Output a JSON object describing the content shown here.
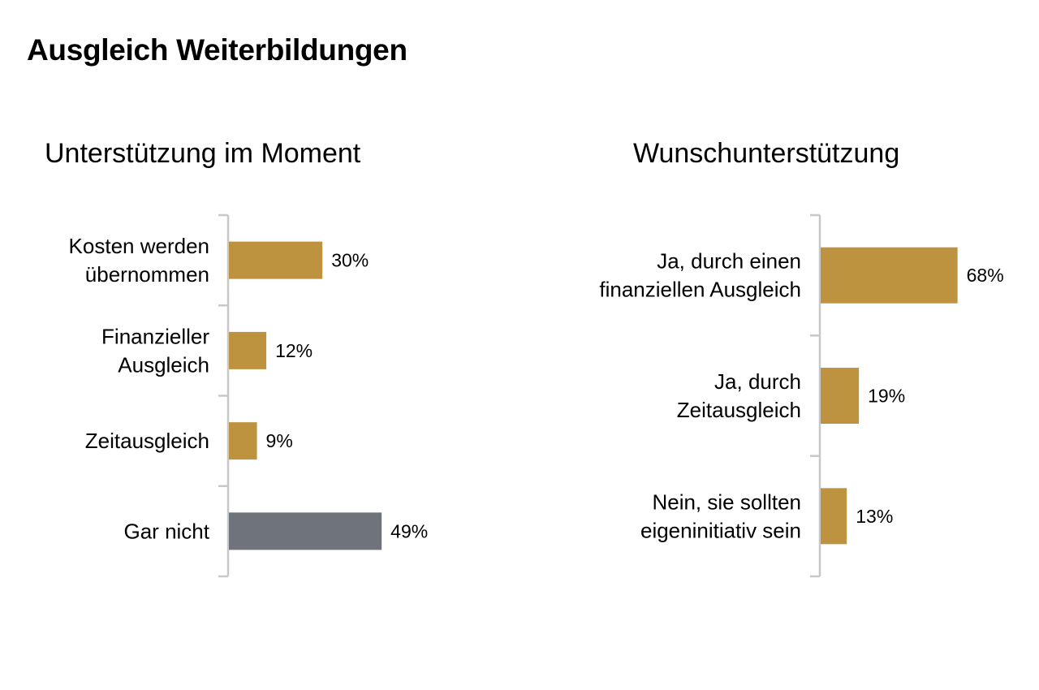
{
  "page": {
    "title": "Ausgleich Weiterbildungen"
  },
  "chart_data": [
    {
      "type": "bar",
      "orientation": "horizontal",
      "title": "Unterstützung im Moment",
      "categories": [
        [
          "Kosten werden",
          "übernommen"
        ],
        [
          "Finanzieller",
          "Ausgleich"
        ],
        [
          "Zeitausgleich"
        ],
        [
          "Gar nicht"
        ]
      ],
      "values": [
        30,
        12,
        9,
        49
      ],
      "value_labels": [
        "30%",
        "12%",
        "9%",
        "49%"
      ],
      "colors": [
        "#BE9340",
        "#BE9340",
        "#BE9340",
        "#6E747A"
      ],
      "xlim": [
        0,
        100
      ],
      "grid": false,
      "legend": "none"
    },
    {
      "type": "bar",
      "orientation": "horizontal",
      "title": "Wunschunterstützung",
      "categories": [
        [
          "Ja, durch einen",
          "finanziellen Ausgleich"
        ],
        [
          "Ja, durch",
          "Zeitausgleich"
        ],
        [
          "Nein, sie sollten",
          "eigeninitiativ sein"
        ]
      ],
      "values": [
        68,
        19,
        13
      ],
      "value_labels": [
        "68%",
        "19%",
        "13%"
      ],
      "colors": [
        "#BE9340",
        "#BE9340",
        "#BE9340"
      ],
      "xlim": [
        0,
        100
      ],
      "grid": false,
      "legend": "none"
    }
  ]
}
